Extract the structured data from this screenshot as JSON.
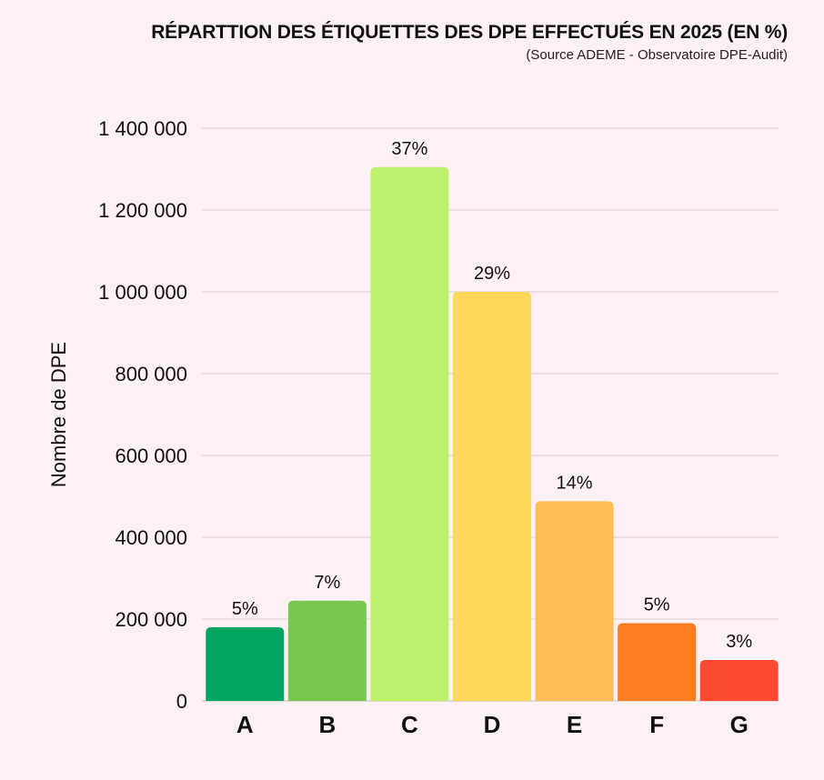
{
  "chart_data": {
    "type": "bar",
    "title": "RÉPARTTION DES ÉTIQUETTES DES DPE EFFECTUÉS EN 2025 (EN %)",
    "subtitle": "(Source ADEME - Observatoire DPE-Audit)",
    "ylabel": "Nombre de DPE",
    "xlabel": "",
    "ylim": [
      0,
      1400000
    ],
    "yticks": [
      0,
      200000,
      400000,
      600000,
      800000,
      1000000,
      1200000,
      1400000
    ],
    "ytick_labels": [
      "0",
      "200 000",
      "400 000",
      "600 000",
      "800 000",
      "1 000 000",
      "1 200 000",
      "1 400 000"
    ],
    "categories": [
      "A",
      "B",
      "C",
      "D",
      "E",
      "F",
      "G"
    ],
    "values": [
      180000,
      245000,
      1305000,
      1000000,
      488000,
      190000,
      100000
    ],
    "data_labels": [
      "5%",
      "7%",
      "37%",
      "29%",
      "14%",
      "5%",
      "3%"
    ],
    "colors": [
      "#00a65f",
      "#78c850",
      "#bff06c",
      "#ffd858",
      "#ffbd58",
      "#ff7c21",
      "#ff4a33"
    ],
    "grid": true,
    "legend": "none"
  }
}
